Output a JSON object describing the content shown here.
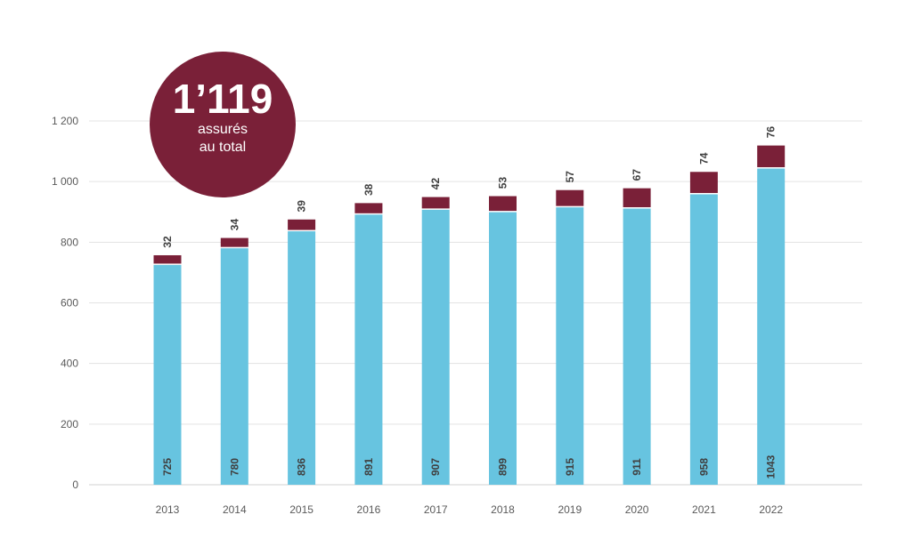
{
  "chart_data": {
    "type": "bar",
    "stacked": true,
    "title": "",
    "xlabel": "",
    "ylabel": "",
    "categories": [
      "2013",
      "2014",
      "2015",
      "2016",
      "2017",
      "2018",
      "2019",
      "2020",
      "2021",
      "2022"
    ],
    "series": [
      {
        "name": "base",
        "color": "#67c4e0",
        "values": [
          725,
          780,
          836,
          891,
          907,
          899,
          915,
          911,
          958,
          1043
        ]
      },
      {
        "name": "top",
        "color": "#7a2038",
        "values": [
          32,
          34,
          39,
          38,
          42,
          53,
          57,
          67,
          74,
          76
        ]
      }
    ],
    "ylim": [
      0,
      1200
    ],
    "yticks": [
      0,
      200,
      400,
      600,
      800,
      1000,
      1200
    ],
    "ytick_labels": [
      "0",
      "200",
      "400",
      "600",
      "800",
      "1 000",
      "1 200"
    ],
    "grid": true,
    "legend": "none"
  },
  "badge": {
    "value": "1’119",
    "line1": "assurés",
    "line2": "au total"
  }
}
